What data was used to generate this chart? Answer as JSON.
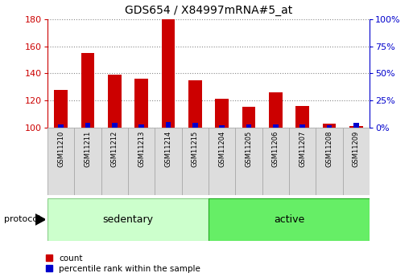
{
  "title": "GDS654 / X84997mRNA#5_at",
  "samples": [
    "GSM11210",
    "GSM11211",
    "GSM11212",
    "GSM11213",
    "GSM11214",
    "GSM11215",
    "GSM11204",
    "GSM11205",
    "GSM11206",
    "GSM11207",
    "GSM11208",
    "GSM11209"
  ],
  "count_values": [
    128,
    155,
    139,
    136,
    180,
    135,
    121,
    115,
    126,
    116,
    103,
    101
  ],
  "percentile_values": [
    3,
    4,
    4,
    3,
    5,
    4,
    2,
    3,
    3,
    3,
    2,
    4
  ],
  "ylim_left": [
    100,
    180
  ],
  "ylim_right": [
    0,
    100
  ],
  "yticks_left": [
    100,
    120,
    140,
    160,
    180
  ],
  "yticks_right": [
    0,
    25,
    50,
    75,
    100
  ],
  "ytick_right_labels": [
    "0%",
    "25%",
    "50%",
    "75%",
    "100%"
  ],
  "sedentary_indices": [
    0,
    1,
    2,
    3,
    4,
    5
  ],
  "active_indices": [
    6,
    7,
    8,
    9,
    10,
    11
  ],
  "sedentary_label": "sedentary",
  "active_label": "active",
  "sedentary_color": "#ccffcc",
  "active_color": "#66ee66",
  "protocol_label": "protocol",
  "bar_color_count": "#cc0000",
  "bar_color_pct": "#0000cc",
  "bar_width": 0.5,
  "background_color": "#ffffff",
  "grid_color": "#888888",
  "tick_label_bg": "#dddddd",
  "tick_label_border": "#aaaaaa",
  "legend_count": "count",
  "legend_pct": "percentile rank within the sample"
}
